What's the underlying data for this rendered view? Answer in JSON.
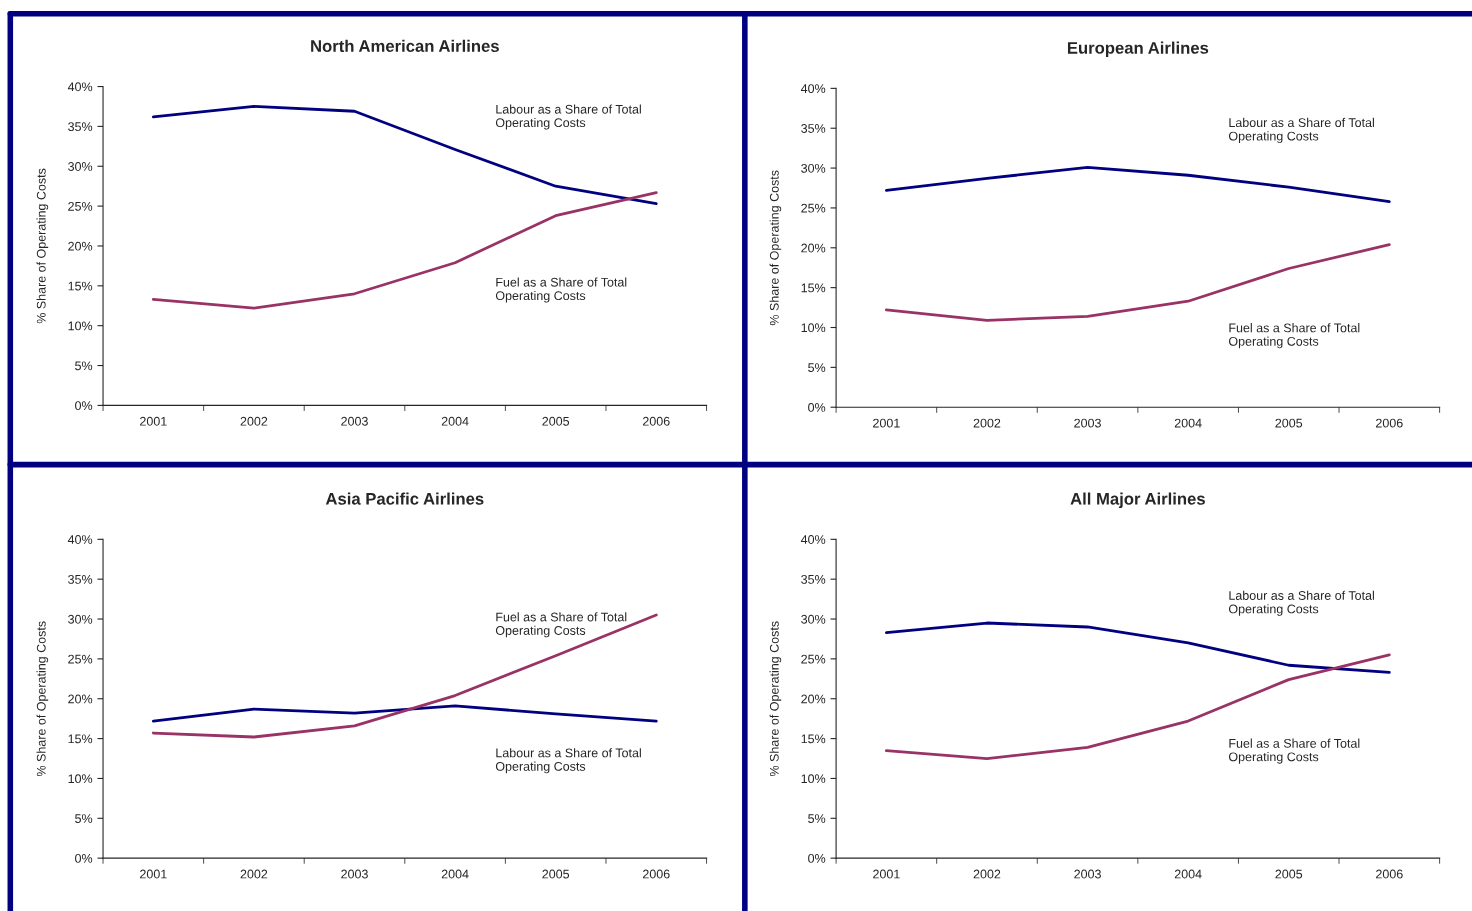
{
  "chart_data": [
    {
      "type": "line",
      "title": "North American Airlines",
      "ylabel": "% Share of Operating Costs",
      "categories": [
        "2001",
        "2002",
        "2003",
        "2004",
        "2005",
        "2006"
      ],
      "ylim": [
        0,
        40
      ],
      "yticks": [
        {
          "value": 0,
          "label": "0%"
        },
        {
          "value": 5,
          "label": "5%"
        },
        {
          "value": 10,
          "label": "10%"
        },
        {
          "value": 15,
          "label": "15%"
        },
        {
          "value": 20,
          "label": "20%"
        },
        {
          "value": 25,
          "label": "25%"
        },
        {
          "value": 30,
          "label": "30%"
        },
        {
          "value": 35,
          "label": "35%"
        },
        {
          "value": 40,
          "label": "40%"
        }
      ],
      "grid": false,
      "legend": false,
      "marker": "none",
      "line_style": "solid",
      "series": [
        {
          "name": "Labour as a Share of Total\nOperating Costs",
          "color": "#000080",
          "values": [
            36.2,
            37.5,
            36.9,
            32.1,
            27.5,
            25.3
          ]
        },
        {
          "name": "Fuel as a Share of Total\nOperating Costs",
          "color": "#993366",
          "values": [
            13.3,
            12.2,
            14.0,
            17.9,
            23.8,
            26.7
          ]
        }
      ]
    },
    {
      "type": "line",
      "title": "European Airlines",
      "ylabel": "% Share of Operating Costs",
      "categories": [
        "2001",
        "2002",
        "2003",
        "2004",
        "2005",
        "2006"
      ],
      "ylim": [
        0,
        40
      ],
      "yticks": [
        {
          "value": 0,
          "label": "0%"
        },
        {
          "value": 5,
          "label": "5%"
        },
        {
          "value": 10,
          "label": "10%"
        },
        {
          "value": 15,
          "label": "15%"
        },
        {
          "value": 20,
          "label": "20%"
        },
        {
          "value": 25,
          "label": "25%"
        },
        {
          "value": 30,
          "label": "30%"
        },
        {
          "value": 35,
          "label": "35%"
        },
        {
          "value": 40,
          "label": "40%"
        }
      ],
      "grid": false,
      "legend": false,
      "marker": "none",
      "line_style": "solid",
      "series": [
        {
          "name": "Labour as a Share of Total\nOperating Costs",
          "color": "#000080",
          "values": [
            27.2,
            28.7,
            30.1,
            29.1,
            27.6,
            25.8
          ]
        },
        {
          "name": "Fuel as a Share of Total\nOperating Costs",
          "color": "#993366",
          "values": [
            12.2,
            10.9,
            11.4,
            13.3,
            17.4,
            20.4
          ]
        }
      ]
    },
    {
      "type": "line",
      "title": "Asia Pacific Airlines",
      "ylabel": "% Share of Operating Costs",
      "categories": [
        "2001",
        "2002",
        "2003",
        "2004",
        "2005",
        "2006"
      ],
      "ylim": [
        0,
        40
      ],
      "yticks": [
        {
          "value": 0,
          "label": "0%"
        },
        {
          "value": 5,
          "label": "5%"
        },
        {
          "value": 10,
          "label": "10%"
        },
        {
          "value": 15,
          "label": "15%"
        },
        {
          "value": 20,
          "label": "20%"
        },
        {
          "value": 25,
          "label": "25%"
        },
        {
          "value": 30,
          "label": "30%"
        },
        {
          "value": 35,
          "label": "35%"
        },
        {
          "value": 40,
          "label": "40%"
        }
      ],
      "grid": false,
      "legend": false,
      "marker": "none",
      "line_style": "solid",
      "series": [
        {
          "name": "Labour as a Share of Total\nOperating Costs",
          "color": "#000080",
          "values": [
            17.2,
            18.7,
            18.2,
            19.1,
            18.1,
            17.2
          ]
        },
        {
          "name": "Fuel as a Share of Total\nOperating Costs",
          "color": "#993366",
          "values": [
            15.7,
            15.2,
            16.6,
            20.4,
            25.4,
            30.5
          ]
        }
      ]
    },
    {
      "type": "line",
      "title": "All Major Airlines",
      "ylabel": "% Share of Operating Costs",
      "categories": [
        "2001",
        "2002",
        "2003",
        "2004",
        "2005",
        "2006"
      ],
      "ylim": [
        0,
        40
      ],
      "yticks": [
        {
          "value": 0,
          "label": "0%"
        },
        {
          "value": 5,
          "label": "5%"
        },
        {
          "value": 10,
          "label": "10%"
        },
        {
          "value": 15,
          "label": "15%"
        },
        {
          "value": 20,
          "label": "20%"
        },
        {
          "value": 25,
          "label": "25%"
        },
        {
          "value": 30,
          "label": "30%"
        },
        {
          "value": 35,
          "label": "35%"
        },
        {
          "value": 40,
          "label": "40%"
        }
      ],
      "grid": false,
      "legend": false,
      "marker": "none",
      "line_style": "solid",
      "series": [
        {
          "name": "Labour as a Share of Total\nOperating Costs",
          "color": "#000080",
          "values": [
            28.3,
            29.5,
            29.0,
            27.0,
            24.2,
            23.3
          ]
        },
        {
          "name": "Fuel as a Share of Total\nOperating Costs",
          "color": "#993366",
          "values": [
            13.5,
            12.5,
            13.9,
            17.2,
            22.4,
            25.5
          ]
        }
      ]
    }
  ]
}
